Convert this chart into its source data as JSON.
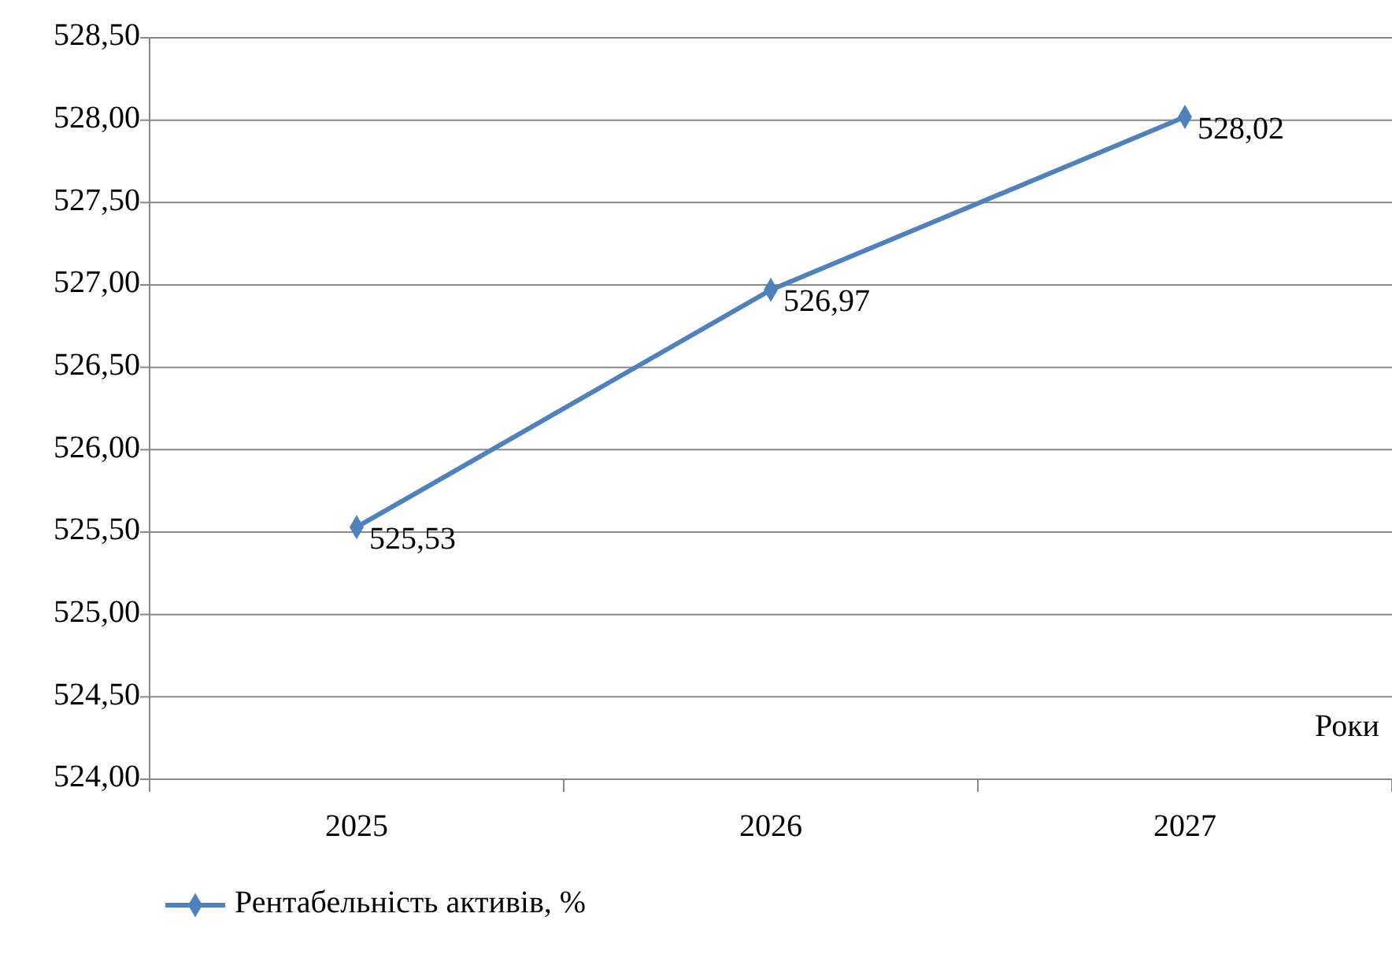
{
  "chart_data": {
    "type": "line",
    "xlabel": "Роки",
    "categories": [
      "2025",
      "2026",
      "2027"
    ],
    "series": [
      {
        "name": "Рентабельність активів, %",
        "color": "#4f81bd",
        "values": [
          525.53,
          526.97,
          528.02
        ],
        "value_labels": [
          "525,53",
          "526,97",
          "528,02"
        ]
      }
    ],
    "ylim": [
      524,
      528.5
    ],
    "yticks": [
      {
        "value": 524,
        "label": "524,00"
      },
      {
        "value": 524.5,
        "label": "524,50"
      },
      {
        "value": 525,
        "label": "525,00"
      },
      {
        "value": 525.5,
        "label": "525,50"
      },
      {
        "value": 526,
        "label": "526,00"
      },
      {
        "value": 526.5,
        "label": "526,50"
      },
      {
        "value": 527,
        "label": "527,00"
      },
      {
        "value": 527.5,
        "label": "527,50"
      },
      {
        "value": 528,
        "label": "528,00"
      },
      {
        "value": 528.5,
        "label": "528,50"
      }
    ],
    "grid": "y",
    "legend": "bottom left",
    "marker": "diamond",
    "line_style": "solid"
  }
}
